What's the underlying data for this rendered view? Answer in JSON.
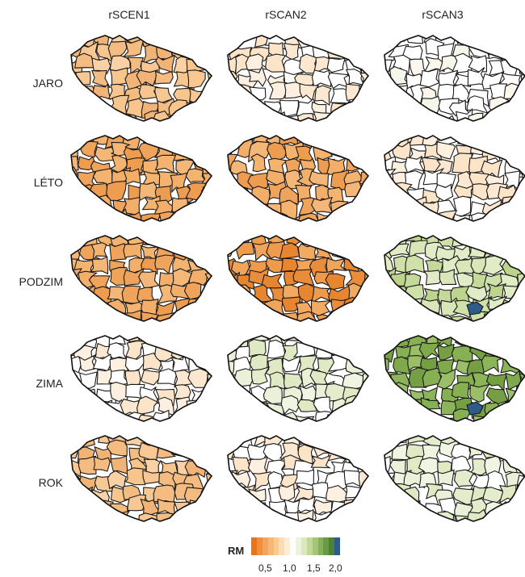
{
  "columns": [
    "rSCEN1",
    "rSCAN2",
    "rSCAN3"
  ],
  "rows": [
    "JARO",
    "LÉTO",
    "PODZIM",
    "ZIMA",
    "ROK"
  ],
  "palettes": {
    "o1": [
      "#f7c893",
      "#f4bc80",
      "#f9d1a4",
      "#f2b377",
      "#f8c68d"
    ],
    "o2": [
      "#f3ae6a",
      "#f0a45b",
      "#f5b777",
      "#ee9c50",
      "#f4b470"
    ],
    "o3": [
      "#ee9b4c",
      "#ea8d3a",
      "#f0a55b",
      "#e8852f",
      "#f2aa62"
    ],
    "l1": [
      "#fbe4c8",
      "#ffffff",
      "#fdf0e0",
      "#fce8d1",
      "#ffffff"
    ],
    "w": [
      "#ffffff",
      "#ffffff",
      "#fdf6ec",
      "#ffffff",
      "#f4f8ea"
    ],
    "g1": [
      "#eaf1d8",
      "#e3edcb",
      "#f0f5e3",
      "#dfeac5",
      "#ffffff"
    ],
    "g2": [
      "#cfe0a9",
      "#c5da9a",
      "#d8e6b8",
      "#bcd48c",
      "#e0ecc6"
    ],
    "g3": [
      "#8cb55a",
      "#7faa4b",
      "#9bbf68",
      "#749f43",
      "#86b052"
    ]
  },
  "maps": [
    [
      "o1",
      "l1",
      "w"
    ],
    [
      "o2",
      "o2",
      "l1"
    ],
    [
      "o2",
      "o3",
      "g2"
    ],
    [
      "l1",
      "g1",
      "g3"
    ],
    [
      "o1",
      "l1",
      "g1"
    ]
  ],
  "special": {
    "blue": "#2e5a8c"
  },
  "legend": {
    "title": "RM",
    "ticks": [
      "0,5",
      "1,0",
      "1,5",
      "2,0"
    ],
    "colors": [
      "#e8731a",
      "#ee8f3c",
      "#f2a55d",
      "#f5b877",
      "#f8ca94",
      "#fbdcb5",
      "#fdecd7",
      "#ffffff",
      "#eef4dc",
      "#dbe8bd",
      "#c2d897",
      "#a4c577",
      "#87b05a",
      "#6b9a45",
      "#4e7f36",
      "#2e5a8c"
    ]
  }
}
